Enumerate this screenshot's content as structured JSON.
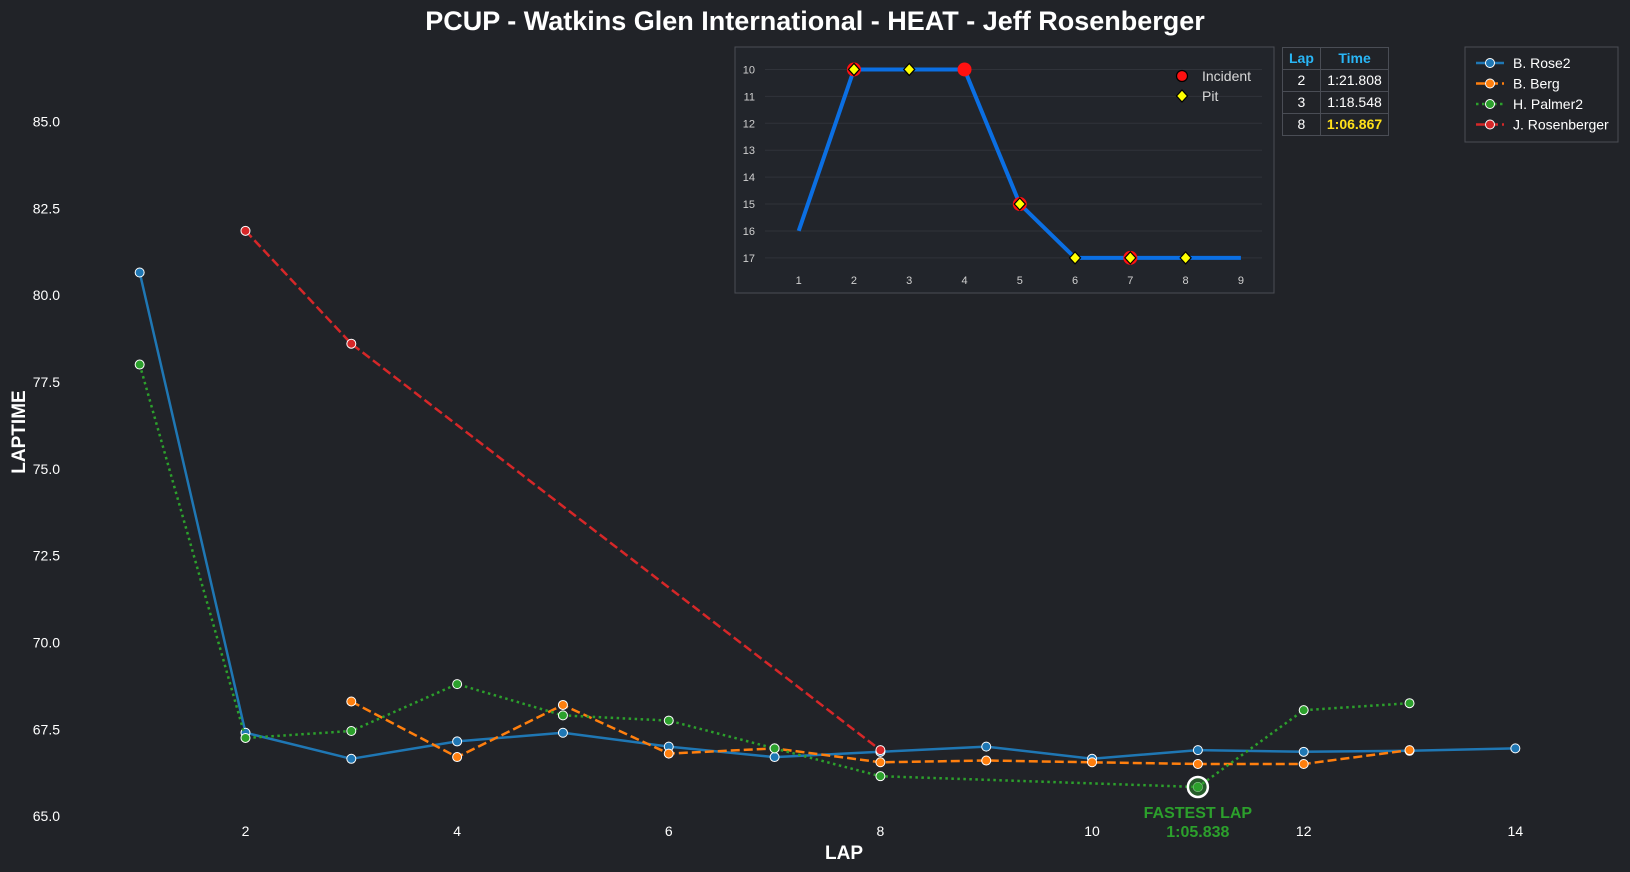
{
  "chart_data": [
    {
      "type": "line",
      "title": "PCUP - Watkins Glen International - HEAT - Jeff Rosenberger",
      "xlabel": "LAP",
      "ylabel": "LAPTIME",
      "xlim": [
        0.2,
        14.8
      ],
      "ylim": [
        64.6,
        87.2
      ],
      "x_ticks": [
        2,
        4,
        6,
        8,
        10,
        12,
        14
      ],
      "y_ticks": [
        65.0,
        67.5,
        70.0,
        72.5,
        75.0,
        77.5,
        80.0,
        82.5,
        85.0
      ],
      "grid": false,
      "legend_position": "top-right",
      "series": [
        {
          "name": "B. Rose2",
          "color": "#1f77b4",
          "dash": "solid",
          "x": [
            1,
            2,
            3,
            4,
            5,
            6,
            7,
            8,
            9,
            10,
            11,
            12,
            13,
            14
          ],
          "y": [
            80.65,
            67.4,
            66.65,
            67.15,
            67.4,
            67.0,
            66.7,
            66.85,
            67.0,
            66.65,
            66.9,
            66.85,
            66.88,
            66.95
          ]
        },
        {
          "name": "B. Berg",
          "color": "#ff7f0e",
          "dash": "dashed",
          "x": [
            3,
            4,
            5,
            6,
            7,
            8,
            9,
            10,
            11,
            12,
            13
          ],
          "y": [
            68.3,
            66.7,
            68.2,
            66.8,
            66.95,
            66.55,
            66.6,
            66.55,
            66.5,
            66.5,
            66.9
          ]
        },
        {
          "name": "H. Palmer2",
          "color": "#2ca02c",
          "dash": "dotted",
          "x": [
            1,
            2,
            3,
            4,
            5,
            6,
            7,
            8,
            11,
            12,
            13
          ],
          "y": [
            78.0,
            67.25,
            67.45,
            68.8,
            67.9,
            67.75,
            66.95,
            66.15,
            65.838,
            68.05,
            68.25
          ]
        },
        {
          "name": "J. Rosenberger",
          "color": "#d62728",
          "dash": "dashed",
          "x": [
            2,
            3,
            8
          ],
          "y": [
            81.85,
            78.6,
            66.9
          ]
        }
      ],
      "annotation": {
        "line1": "FASTEST LAP",
        "line2": "1:05.838",
        "x": 11,
        "y": 65.838,
        "color": "#2ca02c"
      }
    },
    {
      "type": "line",
      "title": "",
      "x": [
        1,
        2,
        3,
        4,
        5,
        6,
        7,
        8,
        9
      ],
      "y": [
        16,
        10,
        10,
        10,
        15,
        17,
        17,
        17,
        17
      ],
      "xlim": [
        0.3,
        9.4
      ],
      "ylim": [
        17.6,
        9.5
      ],
      "x_ticks": [
        1,
        2,
        3,
        4,
        5,
        6,
        7,
        8,
        9
      ],
      "y_ticks": [
        10,
        11,
        12,
        13,
        14,
        15,
        16,
        17
      ],
      "color": "#0b6fe3",
      "incident_laps": [
        2,
        4,
        5,
        7
      ],
      "pit_laps": [
        2,
        3,
        5,
        6,
        7,
        8
      ],
      "legend": {
        "incident": "Incident",
        "pit": "Pit"
      },
      "legend_position": "top-right"
    }
  ],
  "lap_table": {
    "headers": [
      "Lap",
      "Time"
    ],
    "rows": [
      {
        "lap": "2",
        "time": "1:21.808"
      },
      {
        "lap": "3",
        "time": "1:18.548"
      },
      {
        "lap": "8",
        "time": "1:06.867"
      }
    ]
  },
  "colors": {
    "background": "#212328",
    "incident": "#ff1111",
    "pit": "#ffff00",
    "table_header": "#29b6f6",
    "best_time": "#ffe11a"
  }
}
